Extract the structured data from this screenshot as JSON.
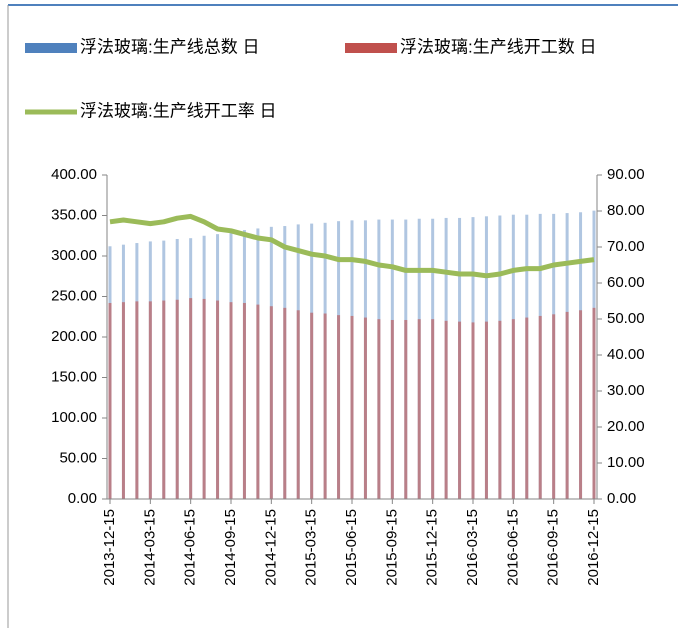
{
  "chart_data": {
    "type": "bar-line",
    "categories": [
      "2013-12-15",
      null,
      null,
      "2014-03-15",
      null,
      null,
      "2014-06-15",
      null,
      null,
      "2014-09-15",
      null,
      null,
      "2014-12-15",
      null,
      null,
      "2015-03-15",
      null,
      null,
      "2015-06-15",
      null,
      null,
      "2015-09-15",
      null,
      null,
      "2015-12-15",
      null,
      null,
      "2016-03-15",
      null,
      null,
      "2016-06-15",
      null,
      null,
      "2016-09-15",
      null,
      null,
      "2016-12-15"
    ],
    "series": [
      {
        "name": "浮法玻璃:生产线总数 日",
        "color": "#4f81bd",
        "kind": "bar",
        "values": [
          312,
          314,
          316,
          318,
          319,
          321,
          322,
          325,
          327,
          330,
          332,
          334,
          336,
          337,
          339,
          340,
          341,
          343,
          344,
          344,
          345,
          345,
          345,
          346,
          346,
          347,
          347,
          348,
          349,
          350,
          351,
          351,
          352,
          352,
          353,
          354,
          356
        ]
      },
      {
        "name": "浮法玻璃:生产线开工数 日",
        "color": "#c0504d",
        "kind": "bar",
        "values": [
          242,
          243,
          244,
          244,
          245,
          246,
          248,
          247,
          245,
          243,
          242,
          240,
          238,
          236,
          233,
          230,
          229,
          227,
          226,
          224,
          222,
          221,
          221,
          222,
          222,
          220,
          219,
          218,
          219,
          220,
          222,
          224,
          226,
          228,
          231,
          233,
          236
        ]
      },
      {
        "name": "浮法玻璃:生产线开工率 日",
        "color": "#9bbb59",
        "kind": "line",
        "axis": "y2",
        "values": [
          77,
          77.5,
          77,
          76.5,
          77,
          78,
          78.5,
          77,
          75,
          74.5,
          73.5,
          72.5,
          72,
          70,
          69,
          68,
          67.5,
          66.5,
          66.5,
          66,
          65,
          64.5,
          63.5,
          63.5,
          63.5,
          63,
          62.5,
          62.5,
          62,
          62.5,
          63.5,
          64,
          64,
          65,
          65.5,
          66,
          66.5
        ]
      }
    ],
    "ylim": [
      0,
      400
    ],
    "yticks": [
      {
        "value": 0,
        "label": "0.00"
      },
      {
        "value": 50,
        "label": "50.00"
      },
      {
        "value": 100,
        "label": "100.00"
      },
      {
        "value": 150,
        "label": "150.00"
      },
      {
        "value": 200,
        "label": "200.00"
      },
      {
        "value": 250,
        "label": "250.00"
      },
      {
        "value": 300,
        "label": "300.00"
      },
      {
        "value": 350,
        "label": "350.00"
      },
      {
        "value": 400,
        "label": "400.00"
      }
    ],
    "y2lim": [
      0,
      90
    ],
    "y2ticks": [
      {
        "value": 0,
        "label": "0.00"
      },
      {
        "value": 10,
        "label": "10.00"
      },
      {
        "value": 20,
        "label": "20.00"
      },
      {
        "value": 30,
        "label": "30.00"
      },
      {
        "value": 40,
        "label": "40.00"
      },
      {
        "value": 50,
        "label": "50.00"
      },
      {
        "value": 60,
        "label": "60.00"
      },
      {
        "value": 70,
        "label": "70.00"
      },
      {
        "value": 80,
        "label": "80.00"
      },
      {
        "value": 90,
        "label": "90.00"
      }
    ]
  }
}
